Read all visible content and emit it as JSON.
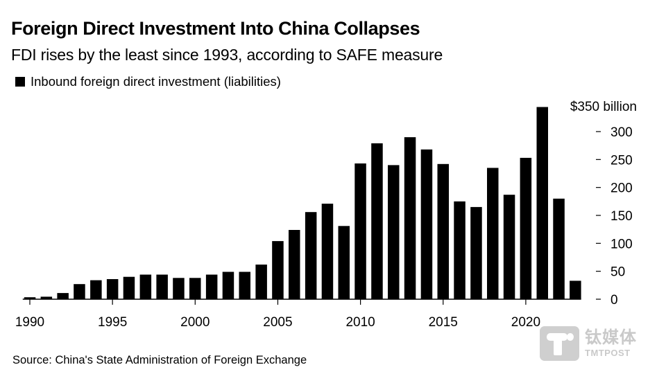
{
  "header": {
    "title": "Foreign Direct Investment Into China Collapses",
    "subtitle": "FDI rises by the least since 1993, according to SAFE measure",
    "legend_label": "Inbound foreign direct investment (liabilities)"
  },
  "footer": {
    "source": "Source: China's State Administration of Foreign Exchange",
    "logo_cn": "钛媒体",
    "logo_en": "TMTPOST"
  },
  "colors": {
    "bar": "#000000",
    "axis": "#000000",
    "logo": "#cfcfcf"
  },
  "chart_data": {
    "type": "bar",
    "title": "Foreign Direct Investment Into China Collapses",
    "subtitle": "FDI rises by the least since 1993, according to SAFE measure",
    "xlabel": "",
    "ylabel": "$ billion",
    "y_unit_label": "$350 billion",
    "ylim": [
      0,
      350
    ],
    "y_ticks": [
      0,
      50,
      100,
      150,
      200,
      250,
      300
    ],
    "y_tick_labels": [
      "0",
      "50",
      "100",
      "150",
      "200",
      "250",
      "300"
    ],
    "x_ticks": [
      1990,
      1995,
      2000,
      2005,
      2010,
      2015,
      2020
    ],
    "x_tick_labels": [
      "1990",
      "1995",
      "2000",
      "2005",
      "2010",
      "2015",
      "2020"
    ],
    "y_axis_position": "right",
    "grid": false,
    "legend": "top-left",
    "categories": [
      1990,
      1991,
      1992,
      1993,
      1994,
      1995,
      1996,
      1997,
      1998,
      1999,
      2000,
      2001,
      2002,
      2003,
      2004,
      2005,
      2006,
      2007,
      2008,
      2009,
      2010,
      2011,
      2012,
      2013,
      2014,
      2015,
      2016,
      2017,
      2018,
      2019,
      2020,
      2021,
      2022,
      2023
    ],
    "series": [
      {
        "name": "Inbound foreign direct investment (liabilities)",
        "values": [
          3.5,
          4.5,
          11,
          27,
          34,
          36,
          40,
          44,
          44,
          38,
          38,
          44,
          49,
          49,
          62,
          104,
          124,
          156,
          171,
          131,
          243,
          279,
          240,
          290,
          268,
          242,
          175,
          165,
          235,
          187,
          253,
          344,
          180,
          33
        ]
      }
    ]
  }
}
